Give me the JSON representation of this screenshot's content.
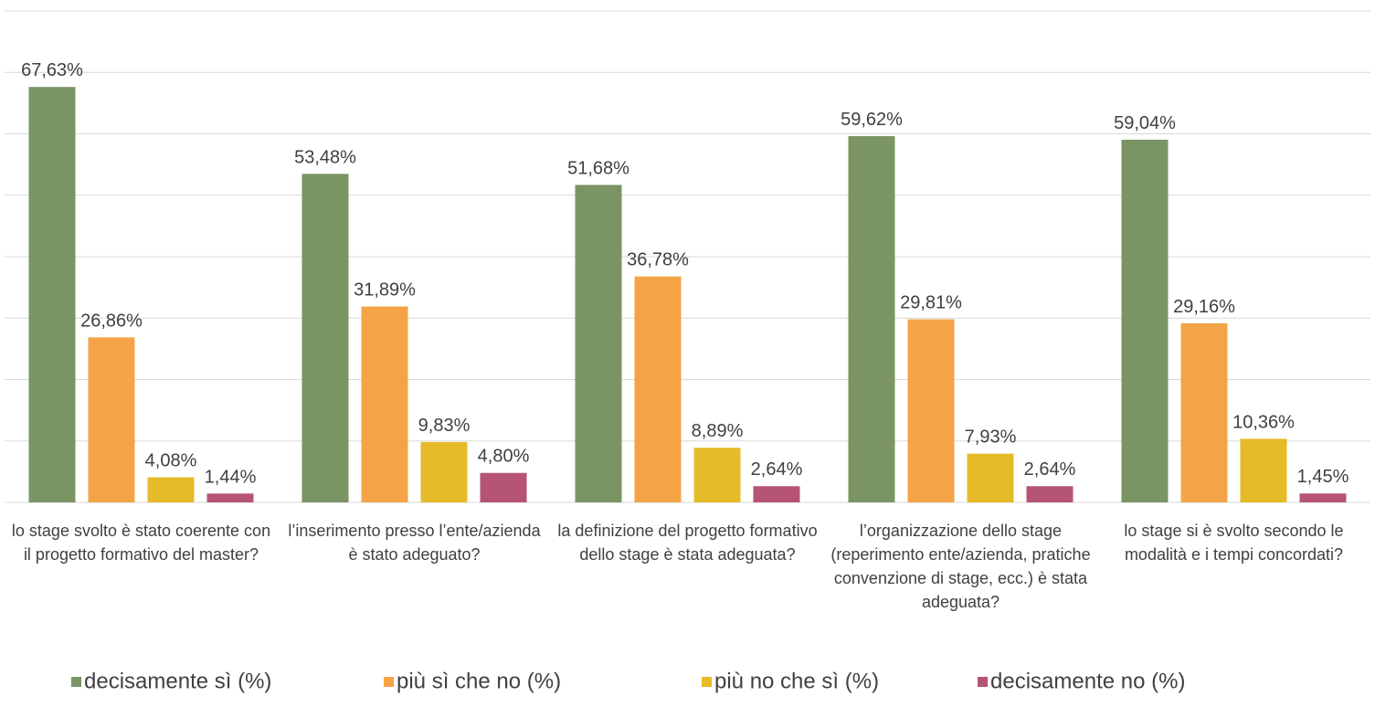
{
  "chart_data": {
    "type": "bar",
    "categories": [
      "lo stage svolto è stato coerente con il progetto formativo del master?",
      "l’inserimento presso l’ente/azienda è stato adeguato?",
      "la definizione del progetto formativo dello stage è stata adeguata?",
      "l’organizzazione dello stage (reperimento ente/azienda, pratiche convenzione di stage, ecc.) è stata adeguata?",
      "lo stage si è svolto secondo le modalità e i tempi concordati?"
    ],
    "series": [
      {
        "name": "decisamente sì (%)",
        "color": "#7a9463",
        "values": [
          67.63,
          53.48,
          51.68,
          59.62,
          59.04
        ],
        "value_labels": [
          "67,63%",
          "53,48%",
          "51,68%",
          "59,62%",
          "59,04%"
        ]
      },
      {
        "name": "più sì che no (%)",
        "color": "#f4a446",
        "values": [
          26.86,
          31.89,
          36.78,
          29.81,
          29.16
        ],
        "value_labels": [
          "26,86%",
          "31,89%",
          "36,78%",
          "29,81%",
          "29,16%"
        ]
      },
      {
        "name": "più no che sì (%)",
        "color": "#e6bb2a",
        "values": [
          4.08,
          9.83,
          8.89,
          7.93,
          10.36
        ],
        "value_labels": [
          "4,08%",
          "9,83%",
          "8,89%",
          "7,93%",
          "10,36%"
        ]
      },
      {
        "name": "decisamente no (%)",
        "color": "#b55476",
        "values": [
          1.44,
          4.8,
          2.64,
          2.64,
          1.45
        ],
        "value_labels": [
          "1,44%",
          "4,80%",
          "2,64%",
          "2,64%",
          "1,45%"
        ]
      }
    ],
    "ylim": [
      0,
      80
    ],
    "yticks": [
      0,
      10,
      20,
      30,
      40,
      50,
      60,
      70,
      80
    ],
    "grid": true,
    "legend": "bottom"
  }
}
